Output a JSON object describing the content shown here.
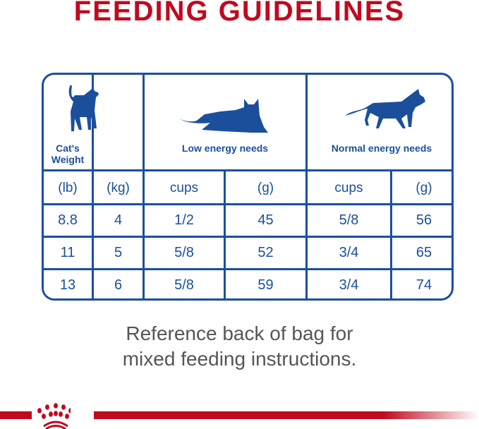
{
  "title": "FEEDING GUIDELINES",
  "table": {
    "groups": [
      "Cat's Weight",
      "Low energy needs",
      "Normal energy needs"
    ],
    "units": [
      "(lb)",
      "(kg)",
      "cups",
      "(g)",
      "cups",
      "(g)"
    ],
    "rows": [
      [
        "8.8",
        "4",
        "1/2",
        "45",
        "5/8",
        "56"
      ],
      [
        "11",
        "5",
        "5/8",
        "52",
        "3/4",
        "65"
      ],
      [
        "13",
        "6",
        "5/8",
        "59",
        "3/4",
        "74"
      ]
    ]
  },
  "note_line1": "Reference back of bag for",
  "note_line2": "mixed feeding instructions.",
  "colors": {
    "blue": "#1b4f9c",
    "red": "#c00a1e"
  },
  "logo": "royal-canin-crown"
}
